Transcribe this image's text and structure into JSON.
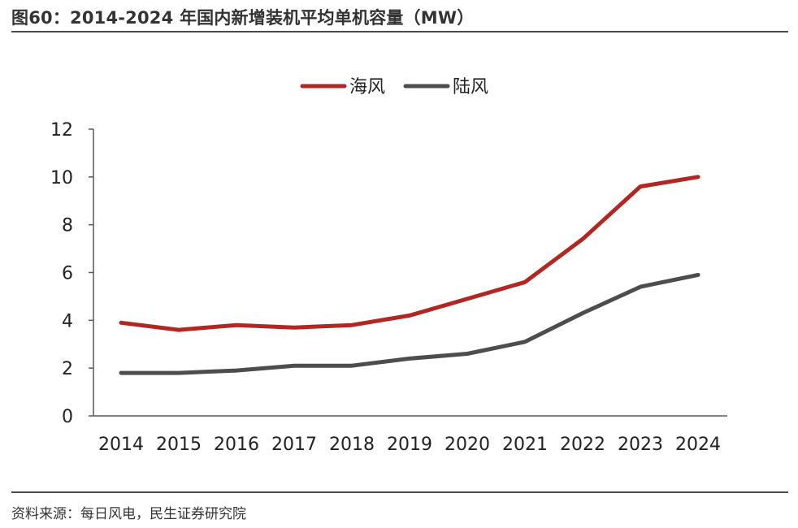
{
  "header": {
    "title": "图60：2014-2024 年国内新增装机平均单机容量（MW）"
  },
  "footer": {
    "source": "资料来源：每日风电，民生证券研究院"
  },
  "colors": {
    "offshore": "#b22722",
    "onshore": "#4d4d4d",
    "axis": "#595959",
    "rule": "#4a4a4a"
  },
  "chart_data": {
    "type": "line",
    "title": "2014-2024 年国内新增装机平均单机容量（MW）",
    "xlabel": "",
    "ylabel": "",
    "categories": [
      "2014",
      "2015",
      "2016",
      "2017",
      "2018",
      "2019",
      "2020",
      "2021",
      "2022",
      "2023",
      "2024"
    ],
    "ylim": [
      0,
      12
    ],
    "yticks": [
      0,
      2,
      4,
      6,
      8,
      10,
      12
    ],
    "grid": false,
    "legend_position": "top-center",
    "series": [
      {
        "name": "海风",
        "color": "#b22722",
        "values": [
          3.9,
          3.6,
          3.8,
          3.7,
          3.8,
          4.2,
          4.9,
          5.6,
          7.4,
          9.6,
          10.0
        ]
      },
      {
        "name": "陆风",
        "color": "#4d4d4d",
        "values": [
          1.8,
          1.8,
          1.9,
          2.1,
          2.1,
          2.4,
          2.6,
          3.1,
          4.3,
          5.4,
          5.9
        ]
      }
    ]
  }
}
